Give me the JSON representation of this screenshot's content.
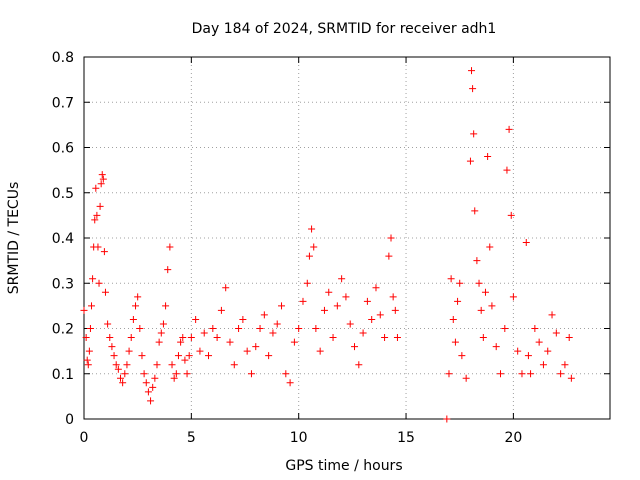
{
  "chart_data": {
    "type": "scatter",
    "title": "Day 184 of 2024, SRMTID for receiver adh1",
    "xlabel": "GPS time / hours",
    "ylabel": "SRMTID / TECUs",
    "xlim": [
      0,
      24.5
    ],
    "ylim": [
      0,
      0.8
    ],
    "x_ticks": [
      0,
      5,
      10,
      15,
      20
    ],
    "y_ticks": [
      0,
      0.1,
      0.2,
      0.3,
      0.4,
      0.5,
      0.6,
      0.7,
      0.8
    ],
    "x_tick_labels": [
      "0",
      "5",
      "10",
      "15",
      "20"
    ],
    "y_tick_labels": [
      "0",
      "0.1",
      "0.2",
      "0.3",
      "0.4",
      "0.5",
      "0.6",
      "0.7",
      "0.8"
    ],
    "grid": true,
    "marker": "+",
    "color": "#ff0000",
    "series": [
      {
        "name": "SRMTID",
        "points": [
          [
            0.0,
            0.24
          ],
          [
            0.1,
            0.18
          ],
          [
            0.15,
            0.13
          ],
          [
            0.2,
            0.12
          ],
          [
            0.25,
            0.15
          ],
          [
            0.3,
            0.2
          ],
          [
            0.35,
            0.25
          ],
          [
            0.4,
            0.31
          ],
          [
            0.45,
            0.38
          ],
          [
            0.5,
            0.44
          ],
          [
            0.55,
            0.51
          ],
          [
            0.6,
            0.45
          ],
          [
            0.65,
            0.38
          ],
          [
            0.7,
            0.3
          ],
          [
            0.75,
            0.47
          ],
          [
            0.8,
            0.52
          ],
          [
            0.85,
            0.54
          ],
          [
            0.9,
            0.53
          ],
          [
            0.95,
            0.37
          ],
          [
            1.0,
            0.28
          ],
          [
            1.1,
            0.21
          ],
          [
            1.2,
            0.18
          ],
          [
            1.3,
            0.16
          ],
          [
            1.4,
            0.14
          ],
          [
            1.5,
            0.12
          ],
          [
            1.6,
            0.11
          ],
          [
            1.7,
            0.09
          ],
          [
            1.8,
            0.08
          ],
          [
            1.9,
            0.1
          ],
          [
            2.0,
            0.12
          ],
          [
            2.1,
            0.15
          ],
          [
            2.2,
            0.18
          ],
          [
            2.3,
            0.22
          ],
          [
            2.4,
            0.25
          ],
          [
            2.5,
            0.27
          ],
          [
            2.6,
            0.2
          ],
          [
            2.7,
            0.14
          ],
          [
            2.8,
            0.1
          ],
          [
            2.9,
            0.08
          ],
          [
            3.0,
            0.06
          ],
          [
            3.1,
            0.04
          ],
          [
            3.2,
            0.07
          ],
          [
            3.3,
            0.09
          ],
          [
            3.4,
            0.12
          ],
          [
            3.5,
            0.17
          ],
          [
            3.6,
            0.19
          ],
          [
            3.7,
            0.21
          ],
          [
            3.8,
            0.25
          ],
          [
            3.9,
            0.33
          ],
          [
            4.0,
            0.38
          ],
          [
            4.1,
            0.12
          ],
          [
            4.2,
            0.09
          ],
          [
            4.3,
            0.1
          ],
          [
            4.4,
            0.14
          ],
          [
            4.5,
            0.17
          ],
          [
            4.6,
            0.18
          ],
          [
            4.7,
            0.13
          ],
          [
            4.8,
            0.1
          ],
          [
            4.9,
            0.14
          ],
          [
            5.0,
            0.18
          ],
          [
            5.2,
            0.22
          ],
          [
            5.4,
            0.15
          ],
          [
            5.6,
            0.19
          ],
          [
            5.8,
            0.14
          ],
          [
            6.0,
            0.2
          ],
          [
            6.2,
            0.18
          ],
          [
            6.4,
            0.24
          ],
          [
            6.6,
            0.29
          ],
          [
            6.8,
            0.17
          ],
          [
            7.0,
            0.12
          ],
          [
            7.2,
            0.2
          ],
          [
            7.4,
            0.22
          ],
          [
            7.6,
            0.15
          ],
          [
            7.8,
            0.1
          ],
          [
            8.0,
            0.16
          ],
          [
            8.2,
            0.2
          ],
          [
            8.4,
            0.23
          ],
          [
            8.6,
            0.14
          ],
          [
            8.8,
            0.19
          ],
          [
            9.0,
            0.21
          ],
          [
            9.2,
            0.25
          ],
          [
            9.4,
            0.1
          ],
          [
            9.6,
            0.08
          ],
          [
            9.8,
            0.17
          ],
          [
            10.0,
            0.2
          ],
          [
            10.2,
            0.26
          ],
          [
            10.4,
            0.3
          ],
          [
            10.5,
            0.36
          ],
          [
            10.6,
            0.42
          ],
          [
            10.7,
            0.38
          ],
          [
            10.8,
            0.2
          ],
          [
            11.0,
            0.15
          ],
          [
            11.2,
            0.24
          ],
          [
            11.4,
            0.28
          ],
          [
            11.6,
            0.18
          ],
          [
            11.8,
            0.25
          ],
          [
            12.0,
            0.31
          ],
          [
            12.2,
            0.27
          ],
          [
            12.4,
            0.21
          ],
          [
            12.6,
            0.16
          ],
          [
            12.8,
            0.12
          ],
          [
            13.0,
            0.19
          ],
          [
            13.2,
            0.26
          ],
          [
            13.4,
            0.22
          ],
          [
            13.6,
            0.29
          ],
          [
            13.8,
            0.23
          ],
          [
            14.0,
            0.18
          ],
          [
            14.2,
            0.36
          ],
          [
            14.3,
            0.4
          ],
          [
            14.4,
            0.27
          ],
          [
            14.5,
            0.24
          ],
          [
            14.6,
            0.18
          ],
          [
            16.9,
            0.0
          ],
          [
            17.0,
            0.1
          ],
          [
            17.1,
            0.31
          ],
          [
            17.2,
            0.22
          ],
          [
            17.3,
            0.17
          ],
          [
            17.4,
            0.26
          ],
          [
            17.5,
            0.3
          ],
          [
            17.6,
            0.14
          ],
          [
            17.8,
            0.09
          ],
          [
            18.0,
            0.57
          ],
          [
            18.05,
            0.77
          ],
          [
            18.1,
            0.73
          ],
          [
            18.15,
            0.63
          ],
          [
            18.2,
            0.46
          ],
          [
            18.3,
            0.35
          ],
          [
            18.4,
            0.3
          ],
          [
            18.5,
            0.24
          ],
          [
            18.6,
            0.18
          ],
          [
            18.7,
            0.28
          ],
          [
            18.8,
            0.58
          ],
          [
            18.9,
            0.38
          ],
          [
            19.0,
            0.25
          ],
          [
            19.2,
            0.16
          ],
          [
            19.4,
            0.1
          ],
          [
            19.6,
            0.2
          ],
          [
            19.7,
            0.55
          ],
          [
            19.8,
            0.64
          ],
          [
            19.9,
            0.45
          ],
          [
            20.0,
            0.27
          ],
          [
            20.2,
            0.15
          ],
          [
            20.4,
            0.1
          ],
          [
            20.6,
            0.39
          ],
          [
            20.7,
            0.14
          ],
          [
            20.8,
            0.1
          ],
          [
            21.0,
            0.2
          ],
          [
            21.2,
            0.17
          ],
          [
            21.4,
            0.12
          ],
          [
            21.6,
            0.15
          ],
          [
            21.8,
            0.23
          ],
          [
            22.0,
            0.19
          ],
          [
            22.2,
            0.1
          ],
          [
            22.4,
            0.12
          ],
          [
            22.6,
            0.18
          ],
          [
            22.7,
            0.09
          ]
        ]
      }
    ]
  }
}
